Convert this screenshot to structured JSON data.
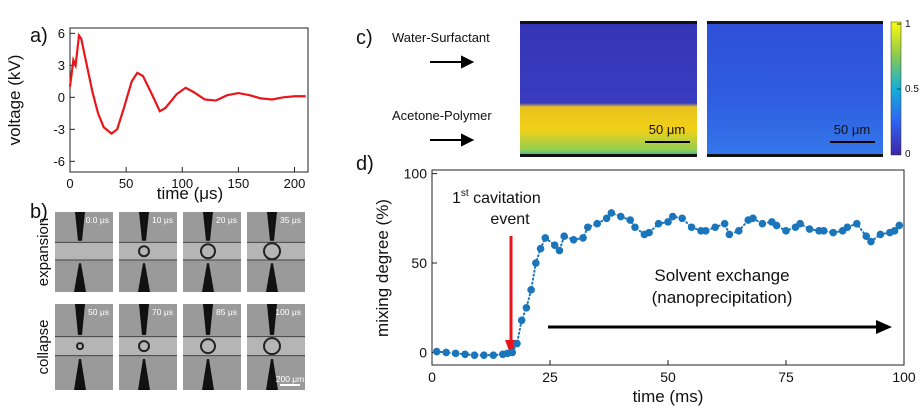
{
  "panel_labels": [
    "a)",
    "b)",
    "c)",
    "d)"
  ],
  "chart_data": [
    {
      "type": "line",
      "xlabel": "time (μs)",
      "ylabel": "voltage (kV)",
      "color": "#e8161b",
      "x": [
        0,
        3,
        5,
        8,
        10,
        15,
        20,
        25,
        30,
        37,
        42,
        48,
        55,
        60,
        65,
        72,
        80,
        85,
        95,
        103,
        110,
        120,
        130,
        140,
        150,
        160,
        170,
        180,
        190,
        200,
        210
      ],
      "values": [
        1,
        3.5,
        3,
        5.8,
        5.5,
        3,
        0.5,
        -1.5,
        -2.8,
        -3.4,
        -3,
        -1,
        1.5,
        2.3,
        2,
        0.5,
        -1.3,
        -1,
        0.3,
        0.9,
        0.5,
        -0.2,
        -0.3,
        0.2,
        0.4,
        0.2,
        -0.1,
        -0.2,
        0,
        0.1,
        0.1
      ],
      "xlim": [
        0,
        212
      ],
      "ylim": [
        -7,
        6.5
      ],
      "xticks": [
        0,
        50,
        100,
        150,
        200
      ],
      "yticks": [
        -6,
        -3,
        0,
        3,
        6
      ]
    },
    {
      "type": "scatter",
      "xlabel": "time (ms)",
      "ylabel": "mixing degree (%)",
      "color": "#1b75bb",
      "x": [
        1,
        3,
        5,
        7,
        9,
        11,
        13,
        15,
        16,
        17,
        18,
        19,
        20,
        21,
        22,
        23,
        24,
        26,
        27,
        28,
        30,
        32,
        33,
        35,
        37,
        38,
        40,
        42,
        43,
        45,
        46,
        48,
        50,
        51,
        53,
        55,
        57,
        58,
        60,
        62,
        63,
        65,
        67,
        68,
        70,
        72,
        73,
        75,
        77,
        78,
        80,
        82,
        83,
        85,
        87,
        88,
        90,
        92,
        93,
        95,
        97,
        98,
        99
      ],
      "values": [
        0.5,
        0,
        -0.5,
        -1,
        -1.5,
        -1.5,
        -1.5,
        -1,
        -0.5,
        0,
        5,
        18,
        25,
        35,
        50,
        58,
        64,
        60,
        57,
        65,
        63,
        64,
        70,
        72,
        75,
        78,
        76,
        74,
        70,
        66,
        67,
        72,
        73,
        76,
        75,
        70,
        68,
        68,
        70,
        72,
        66,
        68,
        74,
        75,
        72,
        73,
        71,
        68,
        70,
        72,
        69,
        68,
        68,
        67,
        68,
        70,
        72,
        65,
        62,
        66,
        67,
        68,
        71
      ],
      "xlim": [
        0,
        100
      ],
      "ylim": [
        -7,
        102
      ],
      "xticks": [
        0,
        25,
        50,
        75,
        100
      ],
      "yticks": [
        0,
        50,
        100
      ],
      "annotations": {
        "event_number": "1",
        "event_suffix": "st",
        "event_line1": " cavitation",
        "event_line2": "event",
        "exchange_line1": "Solvent exchange",
        "exchange_line2": "(nanoprecipitation)"
      }
    }
  ],
  "photos": {
    "row_labels": [
      "expansion",
      "collapse"
    ],
    "frames": [
      "0.0 μs",
      "10 μs",
      "20 μs",
      "35 μs",
      "50 μs",
      "70 μs",
      "85 μs",
      "100 μs"
    ],
    "scale_bar": "200 μm"
  },
  "heatmap": {
    "labels": [
      "Water-Surfactant",
      "Acetone-Polymer"
    ],
    "scale_bars": [
      "50 μm",
      "50 μm"
    ],
    "colorbar_ticks": [
      0,
      0.5,
      1
    ]
  }
}
